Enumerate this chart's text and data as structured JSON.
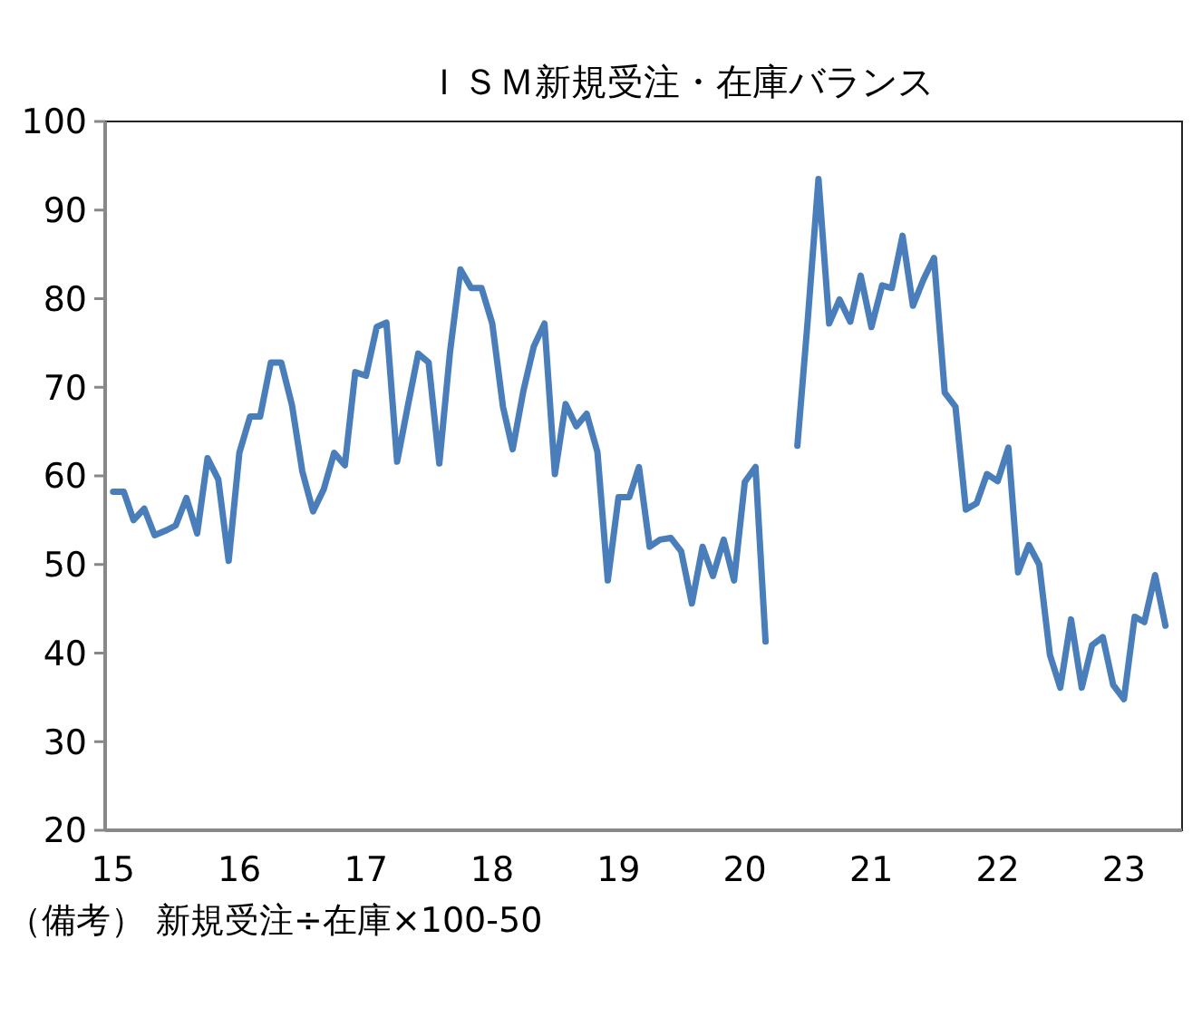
{
  "chart_data": {
    "type": "line",
    "title": "ＩＳＭ新規受注・在庫バランス",
    "annotations": [
      "（備考） 新規受注÷在庫×100-50"
    ],
    "x": [
      "2015-01",
      "2015-02",
      "2015-03",
      "2015-04",
      "2015-05",
      "2015-06",
      "2015-07",
      "2015-08",
      "2015-09",
      "2015-10",
      "2015-11",
      "2015-12",
      "2016-01",
      "2016-02",
      "2016-03",
      "2016-04",
      "2016-05",
      "2016-06",
      "2016-07",
      "2016-08",
      "2016-09",
      "2016-10",
      "2016-11",
      "2016-12",
      "2017-01",
      "2017-02",
      "2017-03",
      "2017-04",
      "2017-05",
      "2017-06",
      "2017-07",
      "2017-08",
      "2017-09",
      "2017-10",
      "2017-11",
      "2017-12",
      "2018-01",
      "2018-02",
      "2018-03",
      "2018-04",
      "2018-05",
      "2018-06",
      "2018-07",
      "2018-08",
      "2018-09",
      "2018-10",
      "2018-11",
      "2018-12",
      "2019-01",
      "2019-02",
      "2019-03",
      "2019-04",
      "2019-05",
      "2019-06",
      "2019-07",
      "2019-08",
      "2019-09",
      "2019-10",
      "2019-11",
      "2019-12",
      "2020-01",
      "2020-02",
      "2020-03",
      "2020-04",
      "2020-05",
      "2020-06",
      "2020-07",
      "2020-08",
      "2020-09",
      "2020-10",
      "2020-11",
      "2020-12",
      "2021-01",
      "2021-02",
      "2021-03",
      "2021-04",
      "2021-05",
      "2021-06",
      "2021-07",
      "2021-08",
      "2021-09",
      "2021-10",
      "2021-11",
      "2021-12",
      "2022-01",
      "2022-02",
      "2022-03",
      "2022-04",
      "2022-05",
      "2022-06",
      "2022-07",
      "2022-08",
      "2022-09",
      "2022-10",
      "2022-11",
      "2022-12",
      "2023-01",
      "2023-02",
      "2023-03",
      "2023-04",
      "2023-05"
    ],
    "series": [
      {
        "color": "#4a7ebb",
        "values": [
          58.2,
          58.2,
          55,
          56.3,
          53.3,
          53.8,
          54.4,
          57.5,
          53.5,
          62,
          59.6,
          50.4,
          62.6,
          66.7,
          66.7,
          72.8,
          72.8,
          68,
          60.5,
          56,
          58.5,
          62.6,
          61.2,
          71.7,
          71.3,
          76.8,
          77.3,
          61.6,
          67.7,
          73.8,
          72.8,
          61.4,
          74,
          83.3,
          81.2,
          81.2,
          77.2,
          67.8,
          63,
          69.6,
          74.6,
          77.2,
          60.2,
          68.1,
          65.6,
          67,
          62.7,
          48.2,
          57.6,
          57.6,
          61,
          52,
          52.8,
          53,
          51.5,
          45.6,
          52,
          48.7,
          52.8,
          48.2,
          59.3,
          61,
          41.3,
          null,
          null,
          63.4,
          77.6,
          93.5,
          77.2,
          79.9,
          77.4,
          82.6,
          76.8,
          81.5,
          81.2,
          87.1,
          79.2,
          82.2,
          84.6,
          69.4,
          67.8,
          56.2,
          56.9,
          60.2,
          59.4,
          63.2,
          49.1,
          52.2,
          50,
          39.8,
          36.1,
          43.8,
          36.1,
          40.9,
          41.8,
          36.4,
          34.8,
          44.1,
          43.5,
          48.8,
          43.1
        ]
      }
    ],
    "xlim": [
      "2014-12-09",
      "2023-06-18"
    ],
    "xticks": [
      {
        "value": "2015-01",
        "label": "15"
      },
      {
        "value": "2016-01",
        "label": "16"
      },
      {
        "value": "2017-01",
        "label": "17"
      },
      {
        "value": "2018-01",
        "label": "18"
      },
      {
        "value": "2019-01",
        "label": "19"
      },
      {
        "value": "2020-01",
        "label": "20"
      },
      {
        "value": "2021-01",
        "label": "21"
      },
      {
        "value": "2022-01",
        "label": "22"
      },
      {
        "value": "2023-01",
        "label": "23"
      }
    ],
    "ylim": [
      20,
      100
    ],
    "yticks": [
      20,
      30,
      40,
      50,
      60,
      70,
      80,
      90,
      100
    ],
    "grid": false,
    "marker": "none",
    "line_style": "solid"
  }
}
